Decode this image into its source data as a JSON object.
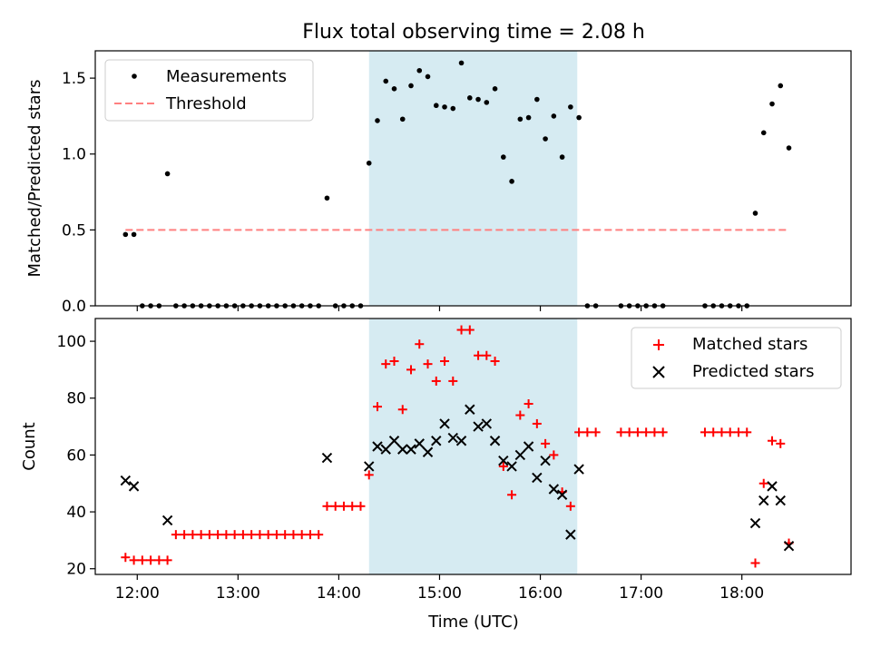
{
  "chart_data": {
    "title": "Flux total observing time = 2.08 h",
    "type": "scatter",
    "shared_x": {
      "label": "Time (UTC)",
      "range": [
        "11:35",
        "19:05"
      ],
      "ticks": [
        "12:00",
        "13:00",
        "14:00",
        "15:00",
        "16:00",
        "17:00",
        "18:00"
      ]
    },
    "shaded_interval": {
      "start": "14:18",
      "end": "16:22",
      "color": "#add8e6"
    },
    "panels": [
      {
        "id": "ratio",
        "ylabel": "Matched/Predicted stars",
        "ylim": [
          0,
          1.68
        ],
        "yticks": [
          0.0,
          0.5,
          1.0,
          1.5
        ],
        "ytick_labels": [
          "0.0",
          "0.5",
          "1.0",
          "1.5"
        ],
        "legend": {
          "position": "top-left",
          "entries": [
            "Measurements",
            "Threshold"
          ]
        },
        "threshold": {
          "name": "Threshold",
          "value": 0.5,
          "x_start": "11:53",
          "x_end": "18:28",
          "color": "#ff8080",
          "style": "dashed"
        },
        "series": [
          {
            "name": "Measurements",
            "marker": "dot",
            "color": "#000000",
            "points": [
              [
                "11:53",
                0.47
              ],
              [
                "11:58",
                0.47
              ],
              [
                "12:03",
                0
              ],
              [
                "12:08",
                0
              ],
              [
                "12:13",
                0
              ],
              [
                "12:18",
                0.87
              ],
              [
                "12:23",
                0
              ],
              [
                "12:28",
                0
              ],
              [
                "12:33",
                0
              ],
              [
                "12:38",
                0
              ],
              [
                "12:43",
                0
              ],
              [
                "12:48",
                0
              ],
              [
                "12:53",
                0
              ],
              [
                "12:58",
                0
              ],
              [
                "13:03",
                0
              ],
              [
                "13:08",
                0
              ],
              [
                "13:13",
                0
              ],
              [
                "13:18",
                0
              ],
              [
                "13:23",
                0
              ],
              [
                "13:28",
                0
              ],
              [
                "13:33",
                0
              ],
              [
                "13:38",
                0
              ],
              [
                "13:43",
                0
              ],
              [
                "13:48",
                0
              ],
              [
                "13:53",
                0.71
              ],
              [
                "13:58",
                0
              ],
              [
                "14:03",
                0
              ],
              [
                "14:08",
                0
              ],
              [
                "14:13",
                0
              ],
              [
                "14:18",
                0.94
              ],
              [
                "14:23",
                1.22
              ],
              [
                "14:28",
                1.48
              ],
              [
                "14:33",
                1.43
              ],
              [
                "14:38",
                1.23
              ],
              [
                "14:43",
                1.45
              ],
              [
                "14:48",
                1.55
              ],
              [
                "14:53",
                1.51
              ],
              [
                "14:58",
                1.32
              ],
              [
                "15:03",
                1.31
              ],
              [
                "15:08",
                1.3
              ],
              [
                "15:13",
                1.6
              ],
              [
                "15:18",
                1.37
              ],
              [
                "15:23",
                1.36
              ],
              [
                "15:28",
                1.34
              ],
              [
                "15:33",
                1.43
              ],
              [
                "15:38",
                0.98
              ],
              [
                "15:43",
                0.82
              ],
              [
                "15:48",
                1.23
              ],
              [
                "15:53",
                1.24
              ],
              [
                "15:58",
                1.36
              ],
              [
                "16:03",
                1.1
              ],
              [
                "16:08",
                1.25
              ],
              [
                "16:13",
                0.98
              ],
              [
                "16:18",
                1.31
              ],
              [
                "16:23",
                1.24
              ],
              [
                "16:28",
                0
              ],
              [
                "16:33",
                0
              ],
              [
                "16:48",
                0
              ],
              [
                "16:53",
                0
              ],
              [
                "16:58",
                0
              ],
              [
                "17:03",
                0
              ],
              [
                "17:08",
                0
              ],
              [
                "17:13",
                0
              ],
              [
                "17:38",
                0
              ],
              [
                "17:43",
                0
              ],
              [
                "17:48",
                0
              ],
              [
                "17:53",
                0
              ],
              [
                "17:58",
                0
              ],
              [
                "18:03",
                0
              ],
              [
                "18:08",
                0.61
              ],
              [
                "18:13",
                1.14
              ],
              [
                "18:18",
                1.33
              ],
              [
                "18:23",
                1.45
              ],
              [
                "18:28",
                1.04
              ]
            ]
          }
        ]
      },
      {
        "id": "count",
        "ylabel": "Count",
        "ylim": [
          18,
          108
        ],
        "yticks": [
          20,
          40,
          60,
          80,
          100
        ],
        "ytick_labels": [
          "20",
          "40",
          "60",
          "80",
          "100"
        ],
        "legend": {
          "position": "top-right",
          "entries": [
            "Matched stars",
            "Predicted stars"
          ]
        },
        "series": [
          {
            "name": "Matched stars",
            "marker": "plus",
            "color": "#ff0000",
            "points": [
              [
                "11:53",
                24
              ],
              [
                "11:58",
                23
              ],
              [
                "12:03",
                23
              ],
              [
                "12:08",
                23
              ],
              [
                "12:13",
                23
              ],
              [
                "12:18",
                23
              ],
              [
                "12:23",
                32
              ],
              [
                "12:28",
                32
              ],
              [
                "12:33",
                32
              ],
              [
                "12:38",
                32
              ],
              [
                "12:43",
                32
              ],
              [
                "12:48",
                32
              ],
              [
                "12:53",
                32
              ],
              [
                "12:58",
                32
              ],
              [
                "13:03",
                32
              ],
              [
                "13:08",
                32
              ],
              [
                "13:13",
                32
              ],
              [
                "13:18",
                32
              ],
              [
                "13:23",
                32
              ],
              [
                "13:28",
                32
              ],
              [
                "13:33",
                32
              ],
              [
                "13:38",
                32
              ],
              [
                "13:43",
                32
              ],
              [
                "13:48",
                32
              ],
              [
                "13:53",
                42
              ],
              [
                "13:58",
                42
              ],
              [
                "14:03",
                42
              ],
              [
                "14:08",
                42
              ],
              [
                "14:13",
                42
              ],
              [
                "14:18",
                53
              ],
              [
                "14:23",
                77
              ],
              [
                "14:28",
                92
              ],
              [
                "14:33",
                93
              ],
              [
                "14:38",
                76
              ],
              [
                "14:43",
                90
              ],
              [
                "14:48",
                99
              ],
              [
                "14:53",
                92
              ],
              [
                "14:58",
                86
              ],
              [
                "15:03",
                93
              ],
              [
                "15:08",
                86
              ],
              [
                "15:13",
                104
              ],
              [
                "15:18",
                104
              ],
              [
                "15:23",
                95
              ],
              [
                "15:28",
                95
              ],
              [
                "15:33",
                93
              ],
              [
                "15:38",
                56
              ],
              [
                "15:43",
                46
              ],
              [
                "15:48",
                74
              ],
              [
                "15:53",
                78
              ],
              [
                "15:58",
                71
              ],
              [
                "16:03",
                64
              ],
              [
                "16:08",
                60
              ],
              [
                "16:13",
                47
              ],
              [
                "16:18",
                42
              ],
              [
                "16:23",
                68
              ],
              [
                "16:28",
                68
              ],
              [
                "16:33",
                68
              ],
              [
                "16:48",
                68
              ],
              [
                "16:53",
                68
              ],
              [
                "16:58",
                68
              ],
              [
                "17:03",
                68
              ],
              [
                "17:08",
                68
              ],
              [
                "17:13",
                68
              ],
              [
                "17:38",
                68
              ],
              [
                "17:43",
                68
              ],
              [
                "17:48",
                68
              ],
              [
                "17:53",
                68
              ],
              [
                "17:58",
                68
              ],
              [
                "18:03",
                68
              ],
              [
                "18:08",
                22
              ],
              [
                "18:13",
                50
              ],
              [
                "18:18",
                65
              ],
              [
                "18:23",
                64
              ],
              [
                "18:28",
                29
              ]
            ]
          },
          {
            "name": "Predicted stars",
            "marker": "x",
            "color": "#000000",
            "points": [
              [
                "11:53",
                51
              ],
              [
                "11:58",
                49
              ],
              [
                "12:18",
                37
              ],
              [
                "13:53",
                59
              ],
              [
                "14:18",
                56
              ],
              [
                "14:23",
                63
              ],
              [
                "14:28",
                62
              ],
              [
                "14:33",
                65
              ],
              [
                "14:38",
                62
              ],
              [
                "14:43",
                62
              ],
              [
                "14:48",
                64
              ],
              [
                "14:53",
                61
              ],
              [
                "14:58",
                65
              ],
              [
                "15:03",
                71
              ],
              [
                "15:08",
                66
              ],
              [
                "15:13",
                65
              ],
              [
                "15:18",
                76
              ],
              [
                "15:23",
                70
              ],
              [
                "15:28",
                71
              ],
              [
                "15:33",
                65
              ],
              [
                "15:38",
                58
              ],
              [
                "15:43",
                56
              ],
              [
                "15:48",
                60
              ],
              [
                "15:53",
                63
              ],
              [
                "15:58",
                52
              ],
              [
                "16:03",
                58
              ],
              [
                "16:08",
                48
              ],
              [
                "16:13",
                46
              ],
              [
                "16:18",
                32
              ],
              [
                "16:23",
                55
              ],
              [
                "18:08",
                36
              ],
              [
                "18:13",
                44
              ],
              [
                "18:18",
                49
              ],
              [
                "18:23",
                44
              ],
              [
                "18:28",
                28
              ]
            ]
          }
        ]
      }
    ]
  }
}
